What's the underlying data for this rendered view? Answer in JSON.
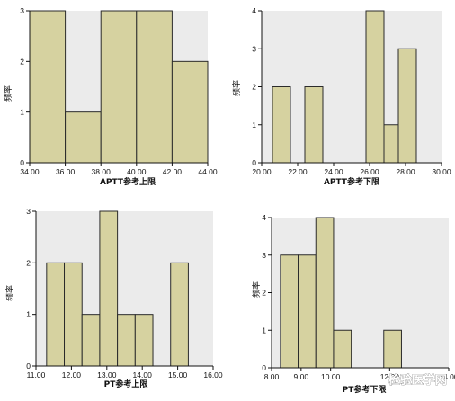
{
  "chart_data": [
    {
      "type": "bar",
      "title": "",
      "xlabel": "APTT参考上限",
      "ylabel": "频率",
      "xlim": [
        34,
        44
      ],
      "ylim": [
        0,
        3
      ],
      "xticks": [
        "34.00",
        "36.00",
        "38.00",
        "40.00",
        "42.00",
        "44.00"
      ],
      "yticks": [
        "0",
        "1",
        "2",
        "3"
      ],
      "bins": [
        {
          "start": 34.0,
          "end": 36.0,
          "value": 3
        },
        {
          "start": 36.0,
          "end": 38.0,
          "value": 1
        },
        {
          "start": 38.0,
          "end": 40.0,
          "value": 3
        },
        {
          "start": 40.0,
          "end": 42.0,
          "value": 3
        },
        {
          "start": 42.0,
          "end": 44.0,
          "value": 2
        }
      ]
    },
    {
      "type": "bar",
      "title": "",
      "xlabel": "APTT参考下限",
      "ylabel": "频率",
      "xlim": [
        20,
        30
      ],
      "ylim": [
        0,
        4
      ],
      "xticks": [
        "20.00",
        "22.00",
        "24.00",
        "26.00",
        "28.00",
        "30.00"
      ],
      "yticks": [
        "0",
        "1",
        "2",
        "3",
        "4"
      ],
      "bins": [
        {
          "start": 20.6,
          "end": 21.6,
          "value": 2
        },
        {
          "start": 22.4,
          "end": 23.4,
          "value": 2
        },
        {
          "start": 25.8,
          "end": 26.8,
          "value": 4
        },
        {
          "start": 26.8,
          "end": 27.6,
          "value": 1
        },
        {
          "start": 27.6,
          "end": 28.6,
          "value": 3
        }
      ]
    },
    {
      "type": "bar",
      "title": "",
      "xlabel": "PT参考上限",
      "ylabel": "频率",
      "xlim": [
        11,
        16
      ],
      "ylim": [
        0,
        3
      ],
      "xticks": [
        "11.00",
        "12.00",
        "13.00",
        "14.00",
        "15.00",
        "16.00"
      ],
      "yticks": [
        "0",
        "1",
        "2",
        "3"
      ],
      "bins": [
        {
          "start": 11.3,
          "end": 11.8,
          "value": 2
        },
        {
          "start": 11.8,
          "end": 12.3,
          "value": 2
        },
        {
          "start": 12.3,
          "end": 12.8,
          "value": 1
        },
        {
          "start": 12.8,
          "end": 13.3,
          "value": 3
        },
        {
          "start": 13.3,
          "end": 13.8,
          "value": 1
        },
        {
          "start": 13.8,
          "end": 14.3,
          "value": 1
        },
        {
          "start": 14.8,
          "end": 15.3,
          "value": 2
        }
      ]
    },
    {
      "type": "bar",
      "title": "",
      "xlabel": "PT参考下限",
      "ylabel": "频率",
      "xlim": [
        8,
        14
      ],
      "ylim": [
        0,
        4
      ],
      "xticks": [
        "8.00",
        "9.00",
        "10.00",
        "12.00",
        "14.00"
      ],
      "yticks": [
        "0",
        "1",
        "2",
        "3",
        "4"
      ],
      "bins": [
        {
          "start": 8.3,
          "end": 8.9,
          "value": 3
        },
        {
          "start": 8.9,
          "end": 9.5,
          "value": 3
        },
        {
          "start": 9.5,
          "end": 10.1,
          "value": 4
        },
        {
          "start": 10.1,
          "end": 10.7,
          "value": 1
        },
        {
          "start": 11.8,
          "end": 12.4,
          "value": 1
        }
      ]
    }
  ],
  "style": {
    "plot_background": "#ebebeb",
    "bar_fill": "#d6d2a0",
    "bar_stroke": "#2b2b2b",
    "axis_color": "#111111"
  },
  "watermark": "检验医学网"
}
